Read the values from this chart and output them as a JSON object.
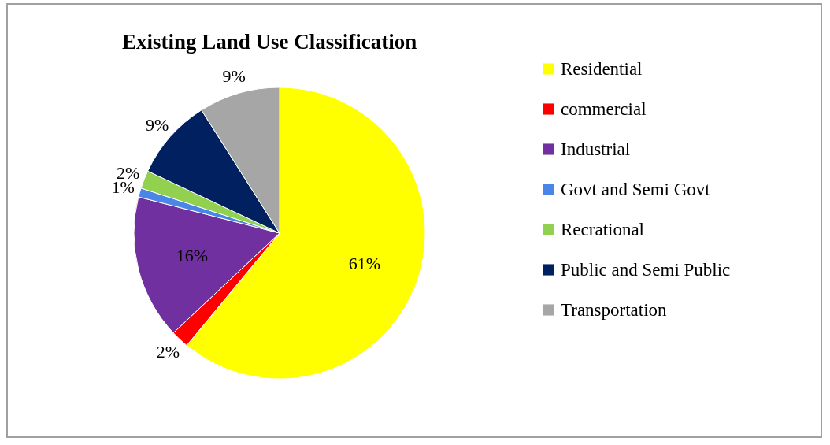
{
  "chart_data": {
    "type": "pie",
    "title": "Existing Land Use Classification",
    "categories": [
      "Residential",
      "commercial",
      "Industrial",
      "Govt and Semi Govt",
      "Recrational",
      "Public and Semi Public",
      "Transportation"
    ],
    "values": [
      61,
      2,
      16,
      1,
      2,
      9,
      9
    ],
    "value_labels": [
      "61%",
      "2%",
      "16%",
      "1%",
      "2%",
      "9%",
      "9%"
    ],
    "colors": [
      "#ffff00",
      "#ff0000",
      "#7030a0",
      "#4a86e8",
      "#92d050",
      "#002060",
      "#a6a6a6"
    ],
    "legend": "right"
  }
}
